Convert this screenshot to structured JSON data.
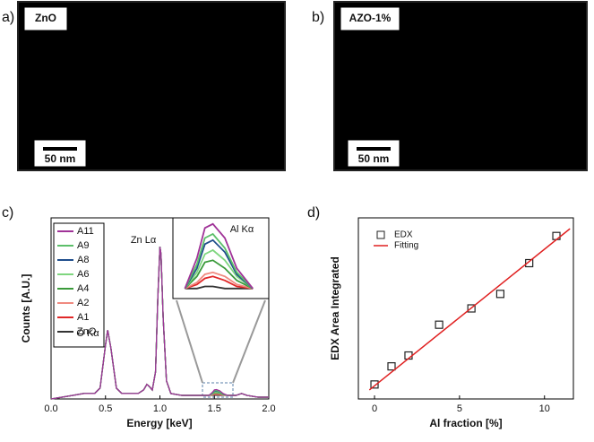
{
  "images": [
    {
      "panel": "a)",
      "label": "ZnO",
      "scale_bar": "50 nm"
    },
    {
      "panel": "b)",
      "label": "AZO-1%",
      "scale_bar": "50 nm"
    }
  ],
  "chart_data": [
    {
      "type": "line",
      "panel": "c)",
      "x_label": "Energy [keV]",
      "y_label": "Counts [A.U.]",
      "xlim": [
        0,
        2
      ],
      "xticks": [
        {
          "value": 0,
          "label": "0.0"
        },
        0.5,
        {
          "value": 1,
          "label": "1.0"
        },
        1.5,
        {
          "value": 2,
          "label": "2.0"
        }
      ],
      "ylim": [
        0,
        1
      ],
      "annotations": [
        "O Kα",
        "Zn Lα"
      ],
      "inset": {
        "title": "Al Kα",
        "xlim": [
          1.42,
          1.66
        ],
        "ylim": [
          0.015,
          0.055
        ]
      },
      "x": [
        0,
        0.1,
        0.2,
        0.3,
        0.4,
        0.45,
        0.5,
        0.52,
        0.55,
        0.6,
        0.65,
        0.7,
        0.8,
        0.85,
        0.88,
        0.9,
        0.93,
        0.96,
        0.98,
        1.0,
        1.01,
        1.03,
        1.06,
        1.1,
        1.2,
        1.3,
        1.4,
        1.45,
        1.48,
        1.5,
        1.52,
        1.55,
        1.58,
        1.62,
        1.7,
        1.75,
        1.8,
        1.9,
        2.0
      ],
      "series": [
        {
          "name": "A11",
          "color": "#a03398",
          "values": [
            0,
            0.01,
            0.02,
            0.03,
            0.03,
            0.06,
            0.3,
            0.38,
            0.28,
            0.06,
            0.03,
            0.03,
            0.03,
            0.05,
            0.08,
            0.07,
            0.05,
            0.15,
            0.55,
            0.84,
            0.8,
            0.45,
            0.1,
            0.03,
            0.02,
            0.02,
            0.02,
            0.02,
            0.035,
            0.05,
            0.052,
            0.045,
            0.03,
            0.02,
            0.02,
            0.03,
            0.02,
            0.01,
            0.01
          ]
        },
        {
          "name": "A9",
          "color": "#5cbf6a",
          "values": [
            0,
            0.01,
            0.02,
            0.03,
            0.03,
            0.06,
            0.3,
            0.38,
            0.28,
            0.06,
            0.03,
            0.03,
            0.03,
            0.05,
            0.08,
            0.07,
            0.05,
            0.15,
            0.55,
            0.84,
            0.8,
            0.45,
            0.1,
            0.03,
            0.02,
            0.02,
            0.02,
            0.02,
            0.032,
            0.045,
            0.047,
            0.04,
            0.028,
            0.02,
            0.02,
            0.03,
            0.02,
            0.01,
            0.01
          ]
        },
        {
          "name": "A8",
          "color": "#1f4e8c",
          "values": [
            0,
            0.01,
            0.02,
            0.03,
            0.03,
            0.06,
            0.3,
            0.38,
            0.28,
            0.06,
            0.03,
            0.03,
            0.03,
            0.05,
            0.08,
            0.07,
            0.05,
            0.15,
            0.55,
            0.84,
            0.8,
            0.45,
            0.1,
            0.03,
            0.02,
            0.02,
            0.02,
            0.02,
            0.03,
            0.042,
            0.044,
            0.038,
            0.027,
            0.02,
            0.02,
            0.03,
            0.02,
            0.01,
            0.01
          ]
        },
        {
          "name": "A6",
          "color": "#7fd67f",
          "values": [
            0,
            0.01,
            0.02,
            0.03,
            0.03,
            0.06,
            0.3,
            0.38,
            0.28,
            0.06,
            0.03,
            0.03,
            0.03,
            0.05,
            0.08,
            0.07,
            0.05,
            0.15,
            0.55,
            0.84,
            0.8,
            0.45,
            0.1,
            0.03,
            0.02,
            0.02,
            0.02,
            0.02,
            0.028,
            0.037,
            0.039,
            0.034,
            0.026,
            0.02,
            0.02,
            0.03,
            0.02,
            0.01,
            0.01
          ]
        },
        {
          "name": "A4",
          "color": "#3a9a3a",
          "values": [
            0,
            0.01,
            0.02,
            0.03,
            0.03,
            0.06,
            0.3,
            0.38,
            0.28,
            0.06,
            0.03,
            0.03,
            0.03,
            0.05,
            0.08,
            0.07,
            0.05,
            0.15,
            0.55,
            0.84,
            0.8,
            0.45,
            0.1,
            0.03,
            0.02,
            0.02,
            0.02,
            0.02,
            0.026,
            0.033,
            0.034,
            0.03,
            0.024,
            0.02,
            0.02,
            0.03,
            0.02,
            0.01,
            0.01
          ]
        },
        {
          "name": "A2",
          "color": "#f08a80",
          "values": [
            0,
            0.01,
            0.02,
            0.03,
            0.03,
            0.06,
            0.3,
            0.38,
            0.28,
            0.06,
            0.03,
            0.03,
            0.03,
            0.05,
            0.08,
            0.07,
            0.05,
            0.15,
            0.55,
            0.84,
            0.8,
            0.45,
            0.1,
            0.03,
            0.02,
            0.02,
            0.02,
            0.02,
            0.023,
            0.027,
            0.028,
            0.026,
            0.022,
            0.02,
            0.02,
            0.03,
            0.02,
            0.01,
            0.01
          ]
        },
        {
          "name": "A1",
          "color": "#e02828",
          "values": [
            0,
            0.01,
            0.02,
            0.03,
            0.03,
            0.06,
            0.3,
            0.38,
            0.28,
            0.06,
            0.03,
            0.03,
            0.03,
            0.05,
            0.08,
            0.07,
            0.05,
            0.15,
            0.55,
            0.84,
            0.8,
            0.45,
            0.1,
            0.03,
            0.02,
            0.02,
            0.02,
            0.02,
            0.022,
            0.025,
            0.026,
            0.024,
            0.021,
            0.02,
            0.02,
            0.03,
            0.02,
            0.01,
            0.01
          ]
        },
        {
          "name": "ZnO",
          "color": "#333333",
          "values": [
            0,
            0.01,
            0.02,
            0.03,
            0.03,
            0.06,
            0.3,
            0.38,
            0.28,
            0.06,
            0.03,
            0.03,
            0.03,
            0.05,
            0.08,
            0.07,
            0.05,
            0.15,
            0.55,
            0.84,
            0.8,
            0.45,
            0.1,
            0.03,
            0.02,
            0.02,
            0.02,
            0.02,
            0.02,
            0.021,
            0.021,
            0.02,
            0.02,
            0.02,
            0.02,
            0.03,
            0.02,
            0.01,
            0.01
          ]
        }
      ]
    },
    {
      "type": "scatter",
      "panel": "d)",
      "x_label": "Al fraction [%]",
      "y_label": "EDX Area Integrated",
      "xlim": [
        -0.95,
        11.7
      ],
      "xticks": [
        0,
        5,
        10
      ],
      "ylim": [
        0,
        1
      ],
      "series": [
        {
          "name": "EDX",
          "color": "#222222",
          "x": [
            0,
            1.0,
            2.0,
            3.8,
            5.7,
            7.4,
            9.1,
            10.7
          ],
          "values": [
            0.08,
            0.18,
            0.24,
            0.41,
            0.5,
            0.58,
            0.75,
            0.9
          ]
        },
        {
          "name": "Fitting",
          "color": "#e02020",
          "x": [
            -0.3,
            11.5
          ],
          "values": [
            0.05,
            0.94
          ]
        }
      ]
    }
  ]
}
